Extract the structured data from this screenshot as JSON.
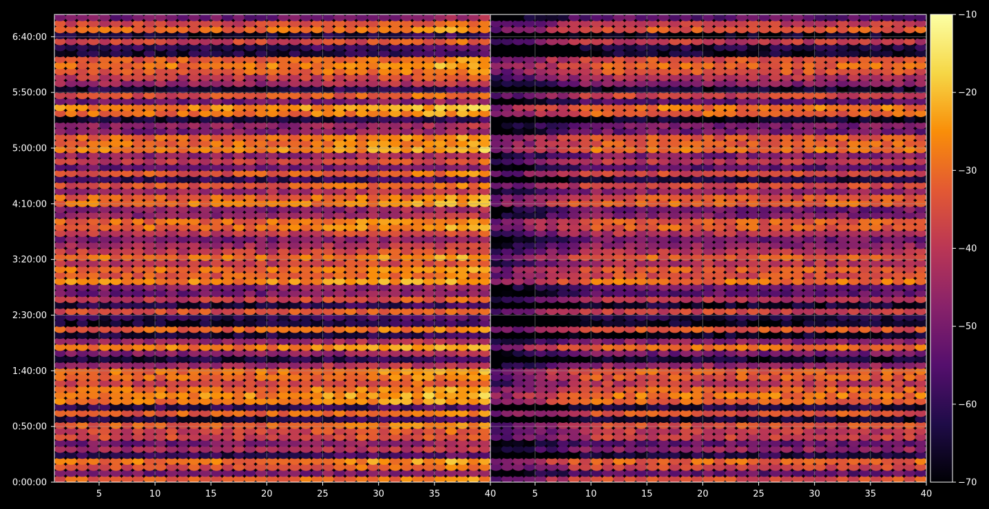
{
  "chart_data": {
    "type": "heatmap",
    "title": "",
    "xlabel": "",
    "ylabel": "",
    "panels": [
      {
        "name": "",
        "xlim": [
          1,
          40
        ],
        "x_ticks": [
          {
            "value": 5,
            "label": "5"
          },
          {
            "value": 10,
            "label": "10"
          },
          {
            "value": 15,
            "label": "15"
          },
          {
            "value": 20,
            "label": "20"
          },
          {
            "value": 25,
            "label": "25"
          },
          {
            "value": 30,
            "label": "30"
          },
          {
            "value": 35,
            "label": "35"
          },
          {
            "value": 40,
            "label": "40"
          }
        ]
      },
      {
        "name": "",
        "xlim": [
          1,
          40
        ],
        "x_ticks": [
          {
            "value": 5,
            "label": "5"
          },
          {
            "value": 10,
            "label": "10"
          },
          {
            "value": 15,
            "label": "15"
          },
          {
            "value": 20,
            "label": "20"
          },
          {
            "value": 25,
            "label": "25"
          },
          {
            "value": 30,
            "label": "30"
          },
          {
            "value": 35,
            "label": "35"
          },
          {
            "value": 40,
            "label": "40"
          }
        ]
      }
    ],
    "y_axis": {
      "unit": "seconds",
      "ylim": [
        0,
        25200
      ],
      "ticks": [
        {
          "value": 0,
          "label": "0:00:00"
        },
        {
          "value": 3000,
          "label": "0:50:00"
        },
        {
          "value": 6000,
          "label": "1:40:00"
        },
        {
          "value": 9000,
          "label": "2:30:00"
        },
        {
          "value": 12000,
          "label": "3:20:00"
        },
        {
          "value": 15000,
          "label": "4:10:00"
        },
        {
          "value": 18000,
          "label": "5:00:00"
        },
        {
          "value": 21000,
          "label": "5:50:00"
        },
        {
          "value": 24000,
          "label": "6:40:00"
        }
      ]
    },
    "grid": true,
    "colormap": "inferno",
    "colorbar": {
      "vmin": -70,
      "vmax": -10,
      "ticks": [
        {
          "value": -10,
          "label": "−10"
        },
        {
          "value": -20,
          "label": "−20"
        },
        {
          "value": -30,
          "label": "−30"
        },
        {
          "value": -40,
          "label": "−40"
        },
        {
          "value": -50,
          "label": "−50"
        },
        {
          "value": -60,
          "label": "−60"
        },
        {
          "value": -70,
          "label": "−70"
        }
      ]
    },
    "colors": {
      "background": "#000000",
      "axis": "#ffffff",
      "grid": "#9a9a9a"
    }
  }
}
